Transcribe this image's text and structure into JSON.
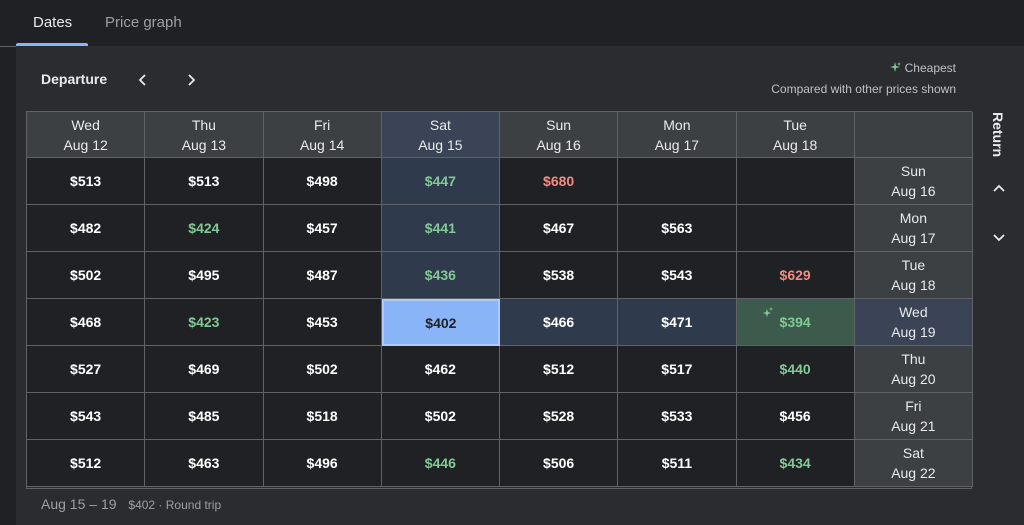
{
  "tabs": [
    {
      "label": "Dates",
      "active": true
    },
    {
      "label": "Price graph",
      "active": false
    }
  ],
  "departure_label": "Departure",
  "return_label": "Return",
  "legend": {
    "cheapest": "Cheapest",
    "note": "Compared with other prices shown"
  },
  "columns": [
    {
      "day": "Wed",
      "date": "Aug 12"
    },
    {
      "day": "Thu",
      "date": "Aug 13"
    },
    {
      "day": "Fri",
      "date": "Aug 14"
    },
    {
      "day": "Sat",
      "date": "Aug 15"
    },
    {
      "day": "Sun",
      "date": "Aug 16"
    },
    {
      "day": "Mon",
      "date": "Aug 17"
    },
    {
      "day": "Tue",
      "date": "Aug 18"
    }
  ],
  "rows": [
    {
      "day": "Sun",
      "date": "Aug 16",
      "prices": [
        "$513",
        "$513",
        "$498",
        "$447",
        "$680",
        "",
        ""
      ]
    },
    {
      "day": "Mon",
      "date": "Aug 17",
      "prices": [
        "$482",
        "$424",
        "$457",
        "$441",
        "$467",
        "$563",
        ""
      ]
    },
    {
      "day": "Tue",
      "date": "Aug 18",
      "prices": [
        "$502",
        "$495",
        "$487",
        "$436",
        "$538",
        "$543",
        "$629"
      ]
    },
    {
      "day": "Wed",
      "date": "Aug 19",
      "prices": [
        "$468",
        "$423",
        "$453",
        "$402",
        "$466",
        "$471",
        "$394"
      ]
    },
    {
      "day": "Thu",
      "date": "Aug 20",
      "prices": [
        "$527",
        "$469",
        "$502",
        "$462",
        "$512",
        "$517",
        "$440"
      ]
    },
    {
      "day": "Fri",
      "date": "Aug 21",
      "prices": [
        "$543",
        "$485",
        "$518",
        "$502",
        "$528",
        "$533",
        "$456"
      ]
    },
    {
      "day": "Sat",
      "date": "Aug 22",
      "prices": [
        "$512",
        "$463",
        "$496",
        "$446",
        "$506",
        "$511",
        "$434"
      ]
    }
  ],
  "price_styles": [
    [
      "",
      "",
      "",
      "green",
      "red",
      "",
      ""
    ],
    [
      "",
      "green",
      "",
      "green",
      "",
      "",
      ""
    ],
    [
      "",
      "",
      "",
      "green",
      "",
      "",
      "red"
    ],
    [
      "",
      "green",
      "",
      "selected",
      "",
      "",
      "cheapest"
    ],
    [
      "",
      "",
      "",
      "",
      "",
      "",
      "green"
    ],
    [
      "",
      "",
      "",
      "",
      "",
      "",
      ""
    ],
    [
      "",
      "",
      "",
      "green",
      "",
      "",
      "green"
    ]
  ],
  "selection": {
    "column": 3,
    "row": 3
  },
  "footer": {
    "dates": "Aug 15 – 19",
    "detail": "$402 · Round trip"
  },
  "colors": {
    "accent": "#8ab4f8",
    "green_price": "#81c995",
    "red_price": "#f28b82",
    "highlight": "#303a4d"
  }
}
